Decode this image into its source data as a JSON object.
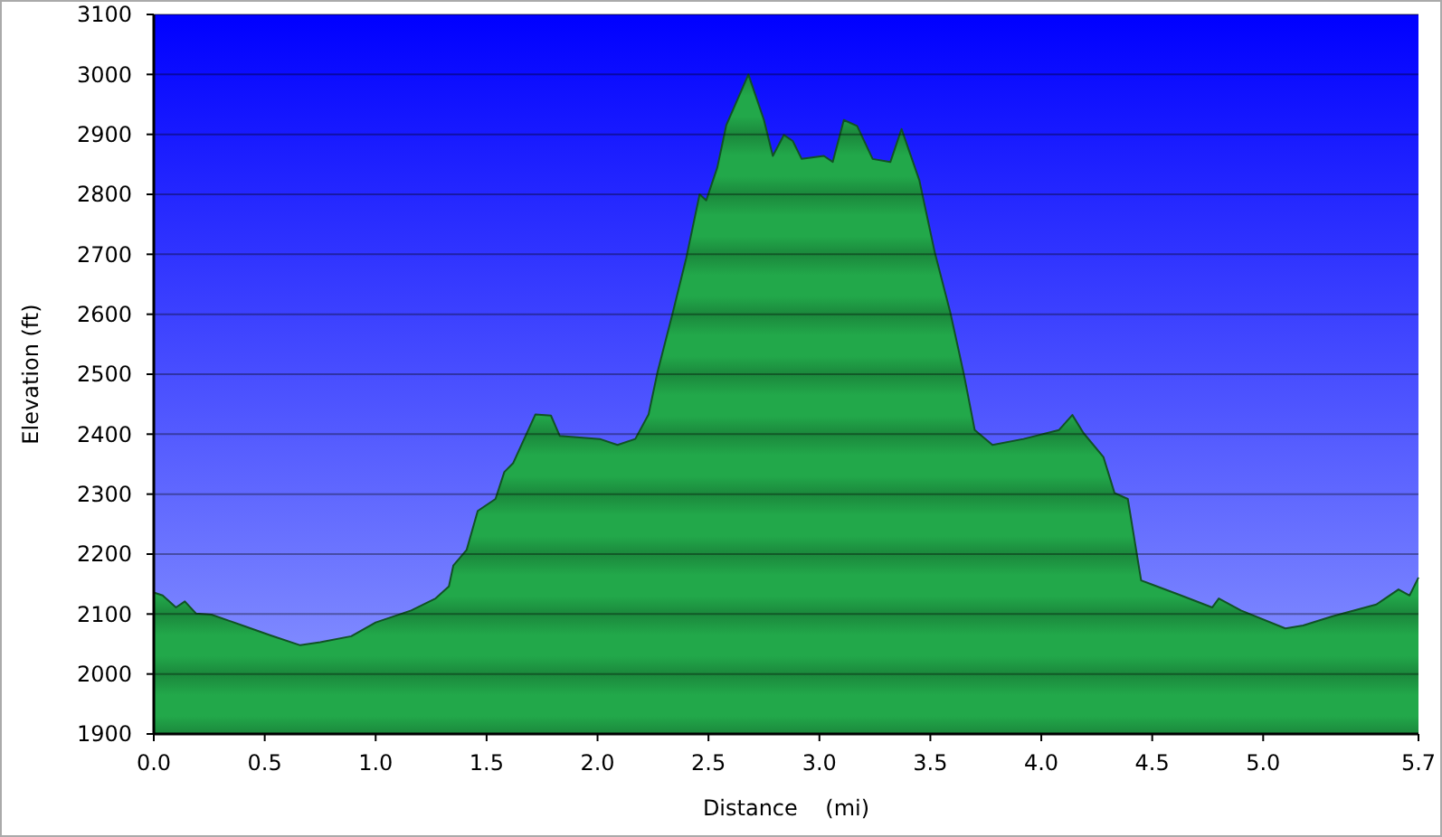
{
  "chart_data": {
    "type": "area",
    "xlabel": "Distance    (mi)",
    "ylabel": "Elevation (ft)",
    "xlim": [
      0,
      5.7
    ],
    "ylim": [
      1900,
      3100
    ],
    "xticks": [
      {
        "value": 0,
        "label": "0.0"
      },
      {
        "value": 0.5,
        "label": "0.5"
      },
      {
        "value": 1,
        "label": "1.0"
      },
      {
        "value": 1.5,
        "label": "1.5"
      },
      {
        "value": 2,
        "label": "2.0"
      },
      {
        "value": 2.5,
        "label": "2.5"
      },
      {
        "value": 3,
        "label": "3.0"
      },
      {
        "value": 3.5,
        "label": "3.5"
      },
      {
        "value": 4,
        "label": "4.0"
      },
      {
        "value": 4.5,
        "label": "4.5"
      },
      {
        "value": 5,
        "label": "5.0"
      },
      {
        "value": 5.7,
        "label": "5.7"
      }
    ],
    "yticks": [
      1900,
      2000,
      2100,
      2200,
      2300,
      2400,
      2500,
      2600,
      2700,
      2800,
      2900,
      3000,
      3100
    ],
    "grid": "y",
    "series": [
      {
        "color": "#22a84a",
        "x": [
          0,
          0.04,
          0.1,
          0.14,
          0.19,
          0.26,
          0.4,
          0.53,
          0.66,
          0.75,
          0.89,
          1.0,
          1.16,
          1.27,
          1.33,
          1.35,
          1.41,
          1.46,
          1.54,
          1.58,
          1.62,
          1.72,
          1.79,
          1.83,
          2.01,
          2.09,
          2.17,
          2.23,
          2.27,
          2.34,
          2.4,
          2.46,
          2.49,
          2.54,
          2.58,
          2.68,
          2.75,
          2.79,
          2.84,
          2.88,
          2.92,
          3.02,
          3.06,
          3.11,
          3.17,
          3.24,
          3.32,
          3.37,
          3.45,
          3.52,
          3.59,
          3.65,
          3.7,
          3.78,
          3.92,
          4.08,
          4.14,
          4.19,
          4.28,
          4.33,
          4.39,
          4.45,
          4.63,
          4.77,
          4.8,
          4.9,
          5.1,
          5.18,
          5.31,
          5.51,
          5.61,
          5.66,
          5.7
        ],
        "values": [
          2136,
          2131,
          2111,
          2121,
          2101,
          2099,
          2081,
          2064,
          2048,
          2053,
          2063,
          2086,
          2106,
          2126,
          2146,
          2181,
          2207,
          2272,
          2292,
          2337,
          2352,
          2433,
          2431,
          2397,
          2392,
          2382,
          2392,
          2433,
          2503,
          2604,
          2694,
          2800,
          2790,
          2845,
          2915,
          3000,
          2924,
          2864,
          2899,
          2889,
          2859,
          2864,
          2854,
          2924,
          2914,
          2859,
          2854,
          2909,
          2824,
          2703,
          2603,
          2502,
          2407,
          2382,
          2392,
          2407,
          2432,
          2402,
          2362,
          2302,
          2292,
          2156,
          2131,
          2111,
          2126,
          2106,
          2076,
          2081,
          2096,
          2116,
          2141,
          2131,
          2161
        ]
      }
    ]
  }
}
